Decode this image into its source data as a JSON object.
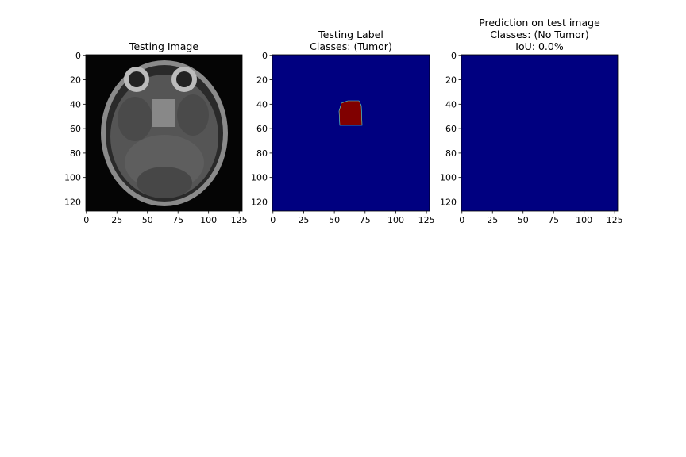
{
  "chart_data": [
    {
      "type": "image",
      "title": [
        "Testing Image"
      ],
      "xlim": [
        -0.5,
        127.5
      ],
      "ylim": [
        127.5,
        -0.5
      ],
      "xticks": [
        0,
        25,
        50,
        75,
        100,
        125
      ],
      "yticks": [
        0,
        20,
        40,
        60,
        80,
        100,
        120
      ]
    },
    {
      "type": "image",
      "title": [
        "Testing Label",
        "Classes: (Tumor)"
      ],
      "xlim": [
        -0.5,
        127.5
      ],
      "ylim": [
        127.5,
        -0.5
      ],
      "xticks": [
        0,
        25,
        50,
        75,
        100,
        125
      ],
      "yticks": [
        0,
        20,
        40,
        60,
        80,
        100,
        120
      ]
    },
    {
      "type": "image",
      "title": [
        "Prediction on test image",
        "Classes: (No Tumor)",
        "IoU: 0.0%"
      ],
      "xlim": [
        -0.5,
        127.5
      ],
      "ylim": [
        127.5,
        -0.5
      ],
      "xticks": [
        0,
        25,
        50,
        75,
        100,
        125
      ],
      "yticks": [
        0,
        20,
        40,
        60,
        80,
        100,
        120
      ]
    }
  ]
}
